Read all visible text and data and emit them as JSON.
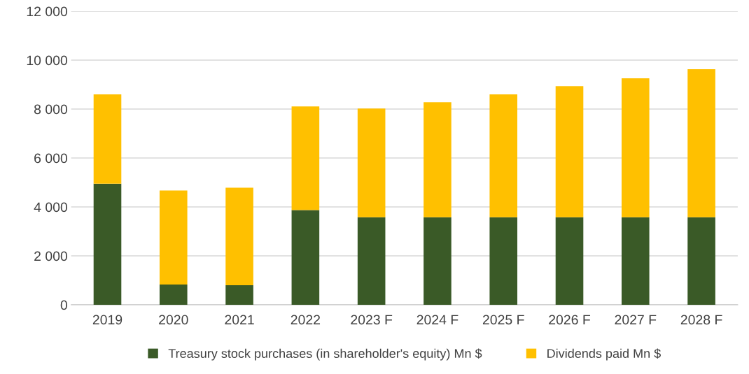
{
  "chart_data": {
    "type": "bar",
    "stacked": true,
    "categories": [
      "2019",
      "2020",
      "2021",
      "2022",
      "2023 F",
      "2024 F",
      "2025 F",
      "2026 F",
      "2027 F",
      "2028 F"
    ],
    "series": [
      {
        "name": "Treasury stock purchases (in shareholder's equity) Mn $",
        "color": "#3a5a27",
        "values": [
          4950,
          830,
          800,
          3870,
          3580,
          3580,
          3580,
          3580,
          3580,
          3580
        ]
      },
      {
        "name": "Dividends paid Mn $",
        "color": "#ffc000",
        "values": [
          3650,
          3840,
          3985,
          4240,
          4440,
          4700,
          5020,
          5360,
          5675,
          6050
        ]
      }
    ],
    "ylim": [
      0,
      12000
    ],
    "yticks": [
      {
        "value": 0,
        "label": "0"
      },
      {
        "value": 2000,
        "label": "2 000"
      },
      {
        "value": 4000,
        "label": "4 000"
      },
      {
        "value": 6000,
        "label": "6 000"
      },
      {
        "value": 8000,
        "label": "8 000"
      },
      {
        "value": 10000,
        "label": "10 000"
      },
      {
        "value": 12000,
        "label": "12 000"
      }
    ],
    "grid": "y",
    "legend": "bottom"
  }
}
